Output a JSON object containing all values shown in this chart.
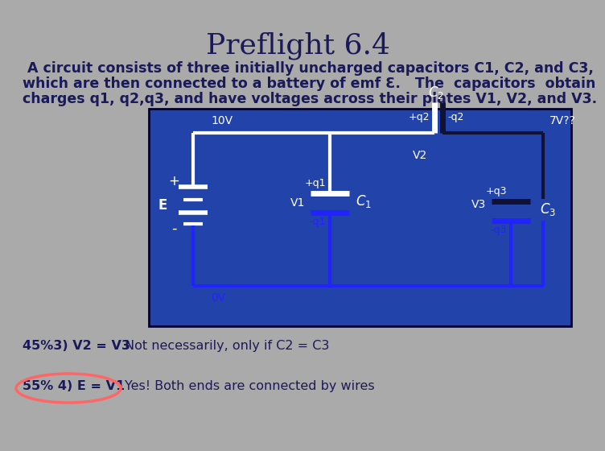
{
  "title": "Preflight 6.4",
  "bg_color": "#aaaaaa",
  "title_color": "#1a1a5a",
  "title_fontsize": 26,
  "body_lines": [
    " A circuit consists of three initially uncharged capacitors C1, C2, and C3,",
    "which are then connected to a battery of emf Ɛ.   The  capacitors  obtain",
    "charges q1, q2,q3, and have voltages across their plates V1, V2, and V3."
  ],
  "body_fontsize": 12.5,
  "body_color": "#1a1a5a",
  "circuit_bg": "#2244aa",
  "wire_white": "#ffffff",
  "wire_blue": "#2222ff",
  "wire_dark": "#111133",
  "label_white": "#ffffff",
  "label_blue": "#3333ff",
  "ans_color": "#1a1a5a",
  "oval_color": "#ff6666",
  "answer_45": "45%3) V2 = V3",
  "answer_45_resp": "Not necessarily, only if C2 = C3",
  "answer_55": "55% 4) E = V1",
  "answer_55_resp": "Yes! Both ends are connected by wires"
}
